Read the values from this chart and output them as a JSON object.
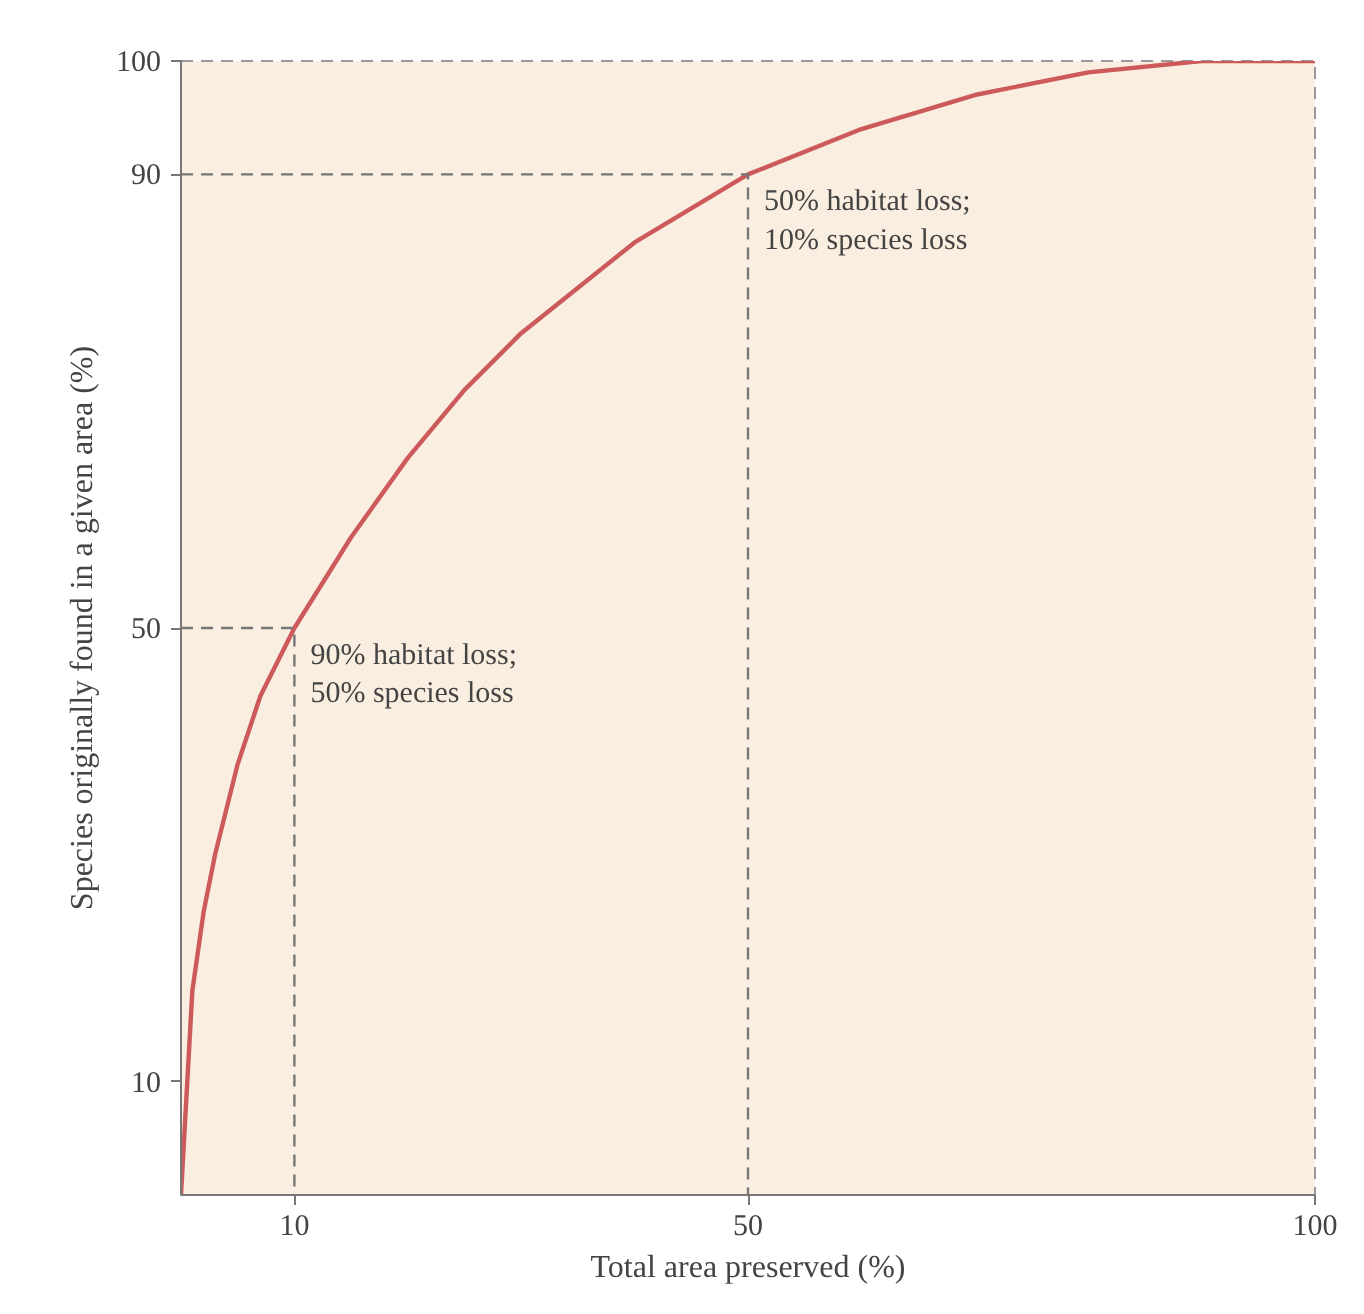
{
  "chart_data": {
    "type": "line",
    "xlabel": "Total area preserved (%)",
    "ylabel": "Species originally found in a given area (%)",
    "x": [
      0,
      1,
      2,
      3,
      5,
      7,
      10,
      15,
      20,
      25,
      30,
      40,
      50,
      60,
      70,
      80,
      90,
      100
    ],
    "series": [
      {
        "color": "#cd5a5a",
        "values": [
          0,
          18,
          25,
          30,
          38,
          44,
          50,
          58,
          65,
          71,
          76,
          84,
          90,
          94,
          97,
          99,
          100,
          100
        ]
      },
      {
        "color": "#777777",
        "x": [
          0,
          10,
          10
        ],
        "values": [
          50,
          50,
          0
        ],
        "line_style": "dashed"
      },
      {
        "color": "#777777",
        "x": [
          0,
          50,
          50
        ],
        "values": [
          90,
          90,
          0
        ],
        "line_style": "dashed"
      }
    ],
    "xlim": [
      0,
      100
    ],
    "ylim": [
      0,
      100
    ],
    "xticks": [
      10,
      50,
      100
    ],
    "yticks": [
      10,
      50,
      90,
      100
    ],
    "grid": false,
    "marker": "none",
    "line_style": "solid",
    "annotations": [
      {
        "text": "90% habitat loss;\n50% species loss",
        "x": 10,
        "y": 50
      },
      {
        "text": "50% habitat loss;\n10% species loss",
        "x": 50,
        "y": 90
      }
    ]
  }
}
